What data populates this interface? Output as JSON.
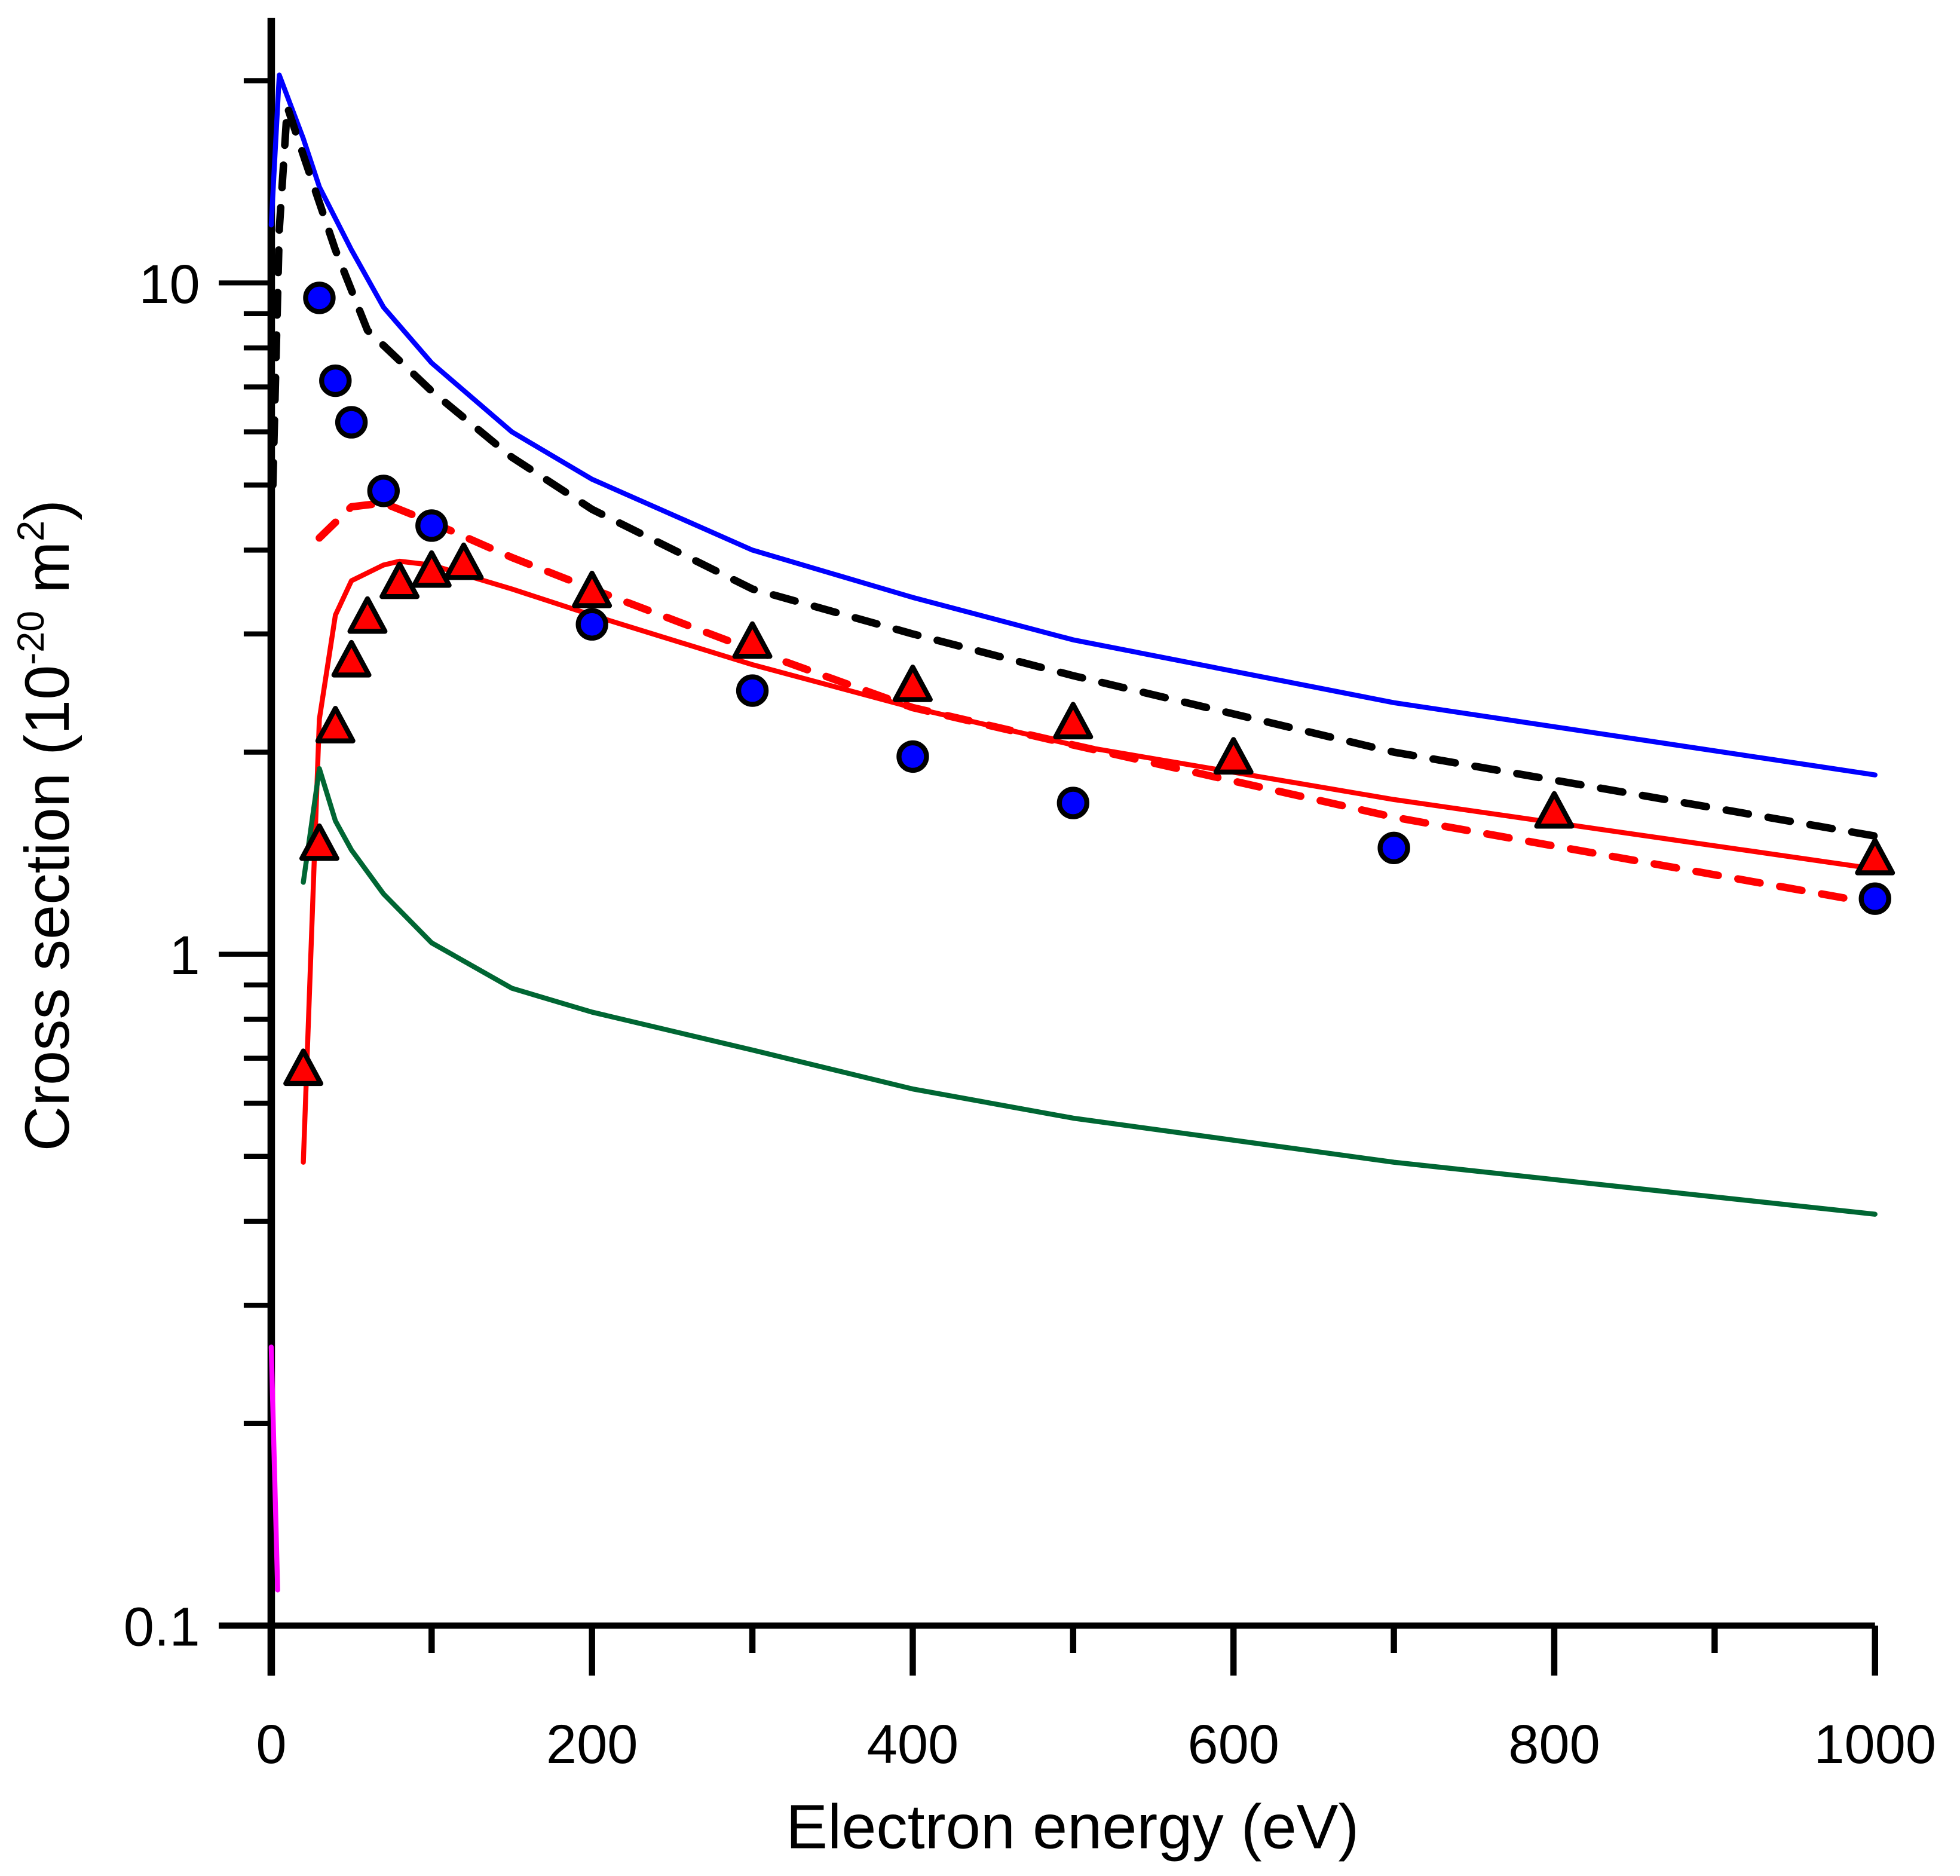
{
  "chart_data": {
    "type": "line",
    "title": "",
    "xlabel": "Electron energy (eV)",
    "ylabel_parts": [
      "Cross section (10",
      "-20",
      " m",
      "2",
      ")"
    ],
    "xlim": [
      0,
      1000
    ],
    "ylim": [
      0.1,
      25
    ],
    "y_scale": "log",
    "grid": false,
    "x_ticks": [
      "0",
      "200",
      "400",
      "600",
      "800",
      "1000"
    ],
    "y_ticks": [
      "0.1",
      "1",
      "10"
    ],
    "series": [
      {
        "style": "solid",
        "color": "#0000ff",
        "marker": "none",
        "x": [
          0,
          5,
          20,
          30,
          50,
          70,
          100,
          150,
          200,
          300,
          400,
          500,
          700,
          1000
        ],
        "y": [
          12.2,
          20.4,
          16.4,
          13.9,
          11.2,
          9.2,
          7.6,
          6.0,
          5.1,
          4.0,
          3.4,
          2.94,
          2.37,
          1.85
        ]
      },
      {
        "style": "dashed",
        "color": "#000000",
        "marker": "none",
        "x": [
          1,
          5,
          10,
          20,
          40,
          60,
          100,
          150,
          200,
          300,
          400,
          500,
          700,
          1000
        ],
        "y": [
          5.0,
          12,
          18.3,
          15.5,
          11.2,
          8.5,
          6.9,
          5.5,
          4.6,
          3.5,
          3.0,
          2.6,
          2.0,
          1.5
        ]
      },
      {
        "style": "dashed",
        "color": "#ff0000",
        "marker": "none",
        "x": [
          30,
          50,
          70,
          100,
          150,
          200,
          300,
          400,
          500,
          700,
          1000
        ],
        "y": [
          4.17,
          4.64,
          4.7,
          4.4,
          3.9,
          3.5,
          2.84,
          2.33,
          2.05,
          1.6,
          1.19
        ]
      },
      {
        "style": "solid",
        "color": "#ff0000",
        "marker": "none",
        "x": [
          20,
          30,
          40,
          50,
          70,
          80,
          100,
          150,
          200,
          300,
          400,
          500,
          700,
          1000
        ],
        "y": [
          0.49,
          2.24,
          3.2,
          3.6,
          3.8,
          3.85,
          3.8,
          3.5,
          3.2,
          2.7,
          2.33,
          2.05,
          1.7,
          1.34
        ]
      },
      {
        "style": "solid",
        "color": "#006633",
        "marker": "none",
        "x": [
          20,
          30,
          40,
          50,
          70,
          100,
          150,
          200,
          300,
          400,
          500,
          700,
          1000
        ],
        "y": [
          1.28,
          1.89,
          1.58,
          1.43,
          1.23,
          1.04,
          0.89,
          0.82,
          0.72,
          0.63,
          0.57,
          0.49,
          0.41
        ]
      },
      {
        "style": "solid",
        "color": "#ff00ff",
        "marker": "none",
        "x": [
          0,
          4
        ],
        "y": [
          0.26,
          0.113
        ]
      },
      {
        "style": "none",
        "color": "#0000ff",
        "marker": "circle",
        "x": [
          30,
          40,
          50,
          70,
          100,
          200,
          300,
          400,
          500,
          700,
          1000
        ],
        "y": [
          9.5,
          7.15,
          6.2,
          4.9,
          4.35,
          3.1,
          2.47,
          1.97,
          1.68,
          1.44,
          1.21
        ]
      },
      {
        "style": "none",
        "color": "#ff0000",
        "marker": "triangle",
        "x": [
          20,
          30,
          40,
          50,
          60,
          80,
          100,
          120,
          200,
          300,
          400,
          500,
          600,
          800,
          1000
        ],
        "y": [
          0.67,
          1.45,
          2.17,
          2.72,
          3.16,
          3.56,
          3.7,
          3.8,
          3.45,
          2.9,
          2.5,
          2.2,
          1.95,
          1.62,
          1.38
        ]
      }
    ]
  }
}
